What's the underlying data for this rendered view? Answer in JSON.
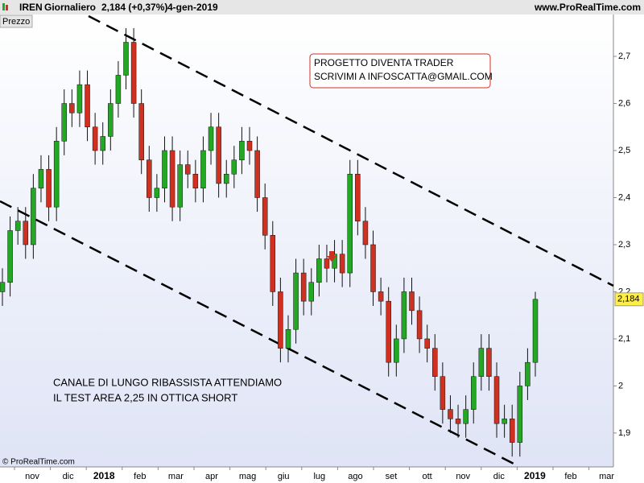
{
  "header": {
    "symbol": "IREN",
    "period": "Giornaliero",
    "change": "2,184 (+0,37%)",
    "date": "4-gen-2019",
    "site": "www.ProRealTime.com",
    "panel_label": "Prezzo",
    "copyright": "© ProRealTime.com"
  },
  "chart_data": {
    "type": "candlestick",
    "categories": [
      null,
      null,
      null,
      null,
      null,
      null,
      null,
      null,
      null,
      null,
      null,
      null,
      null,
      null,
      null,
      null,
      null,
      null,
      null,
      null,
      null,
      null,
      null,
      null,
      null,
      null,
      null,
      null,
      null,
      null,
      null,
      null,
      null,
      null,
      null,
      null,
      null,
      null,
      null,
      null,
      null,
      null,
      null,
      null,
      null,
      null,
      null,
      null,
      null,
      null,
      null,
      null,
      null,
      null,
      null,
      null,
      null,
      null,
      null,
      null,
      null,
      null,
      null,
      null,
      null,
      null,
      null,
      null,
      null,
      null
    ],
    "open": [
      2.2,
      2.22,
      2.33,
      2.35,
      2.3,
      2.42,
      2.46,
      2.38,
      2.52,
      2.6,
      2.58,
      2.64,
      2.55,
      2.5,
      2.53,
      2.6,
      2.66,
      2.73,
      2.6,
      2.48,
      2.4,
      2.42,
      2.5,
      2.38,
      2.47,
      2.45,
      2.42,
      2.5,
      2.55,
      2.43,
      2.45,
      2.48,
      2.52,
      2.5,
      2.4,
      2.32,
      2.2,
      2.08,
      2.12,
      2.24,
      2.18,
      2.22,
      2.27,
      2.25,
      2.28,
      2.24,
      2.45,
      2.35,
      2.3,
      2.2,
      2.18,
      2.05,
      2.1,
      2.2,
      2.16,
      2.1,
      2.08,
      2.02,
      1.95,
      1.93,
      1.92,
      1.95,
      2.02,
      2.08,
      2.02,
      1.92,
      1.93,
      1.88,
      2.0,
      2.05
    ],
    "high": [
      2.25,
      2.36,
      2.38,
      2.38,
      2.45,
      2.49,
      2.49,
      2.55,
      2.63,
      2.63,
      2.67,
      2.67,
      2.58,
      2.56,
      2.63,
      2.69,
      2.76,
      2.76,
      2.63,
      2.51,
      2.45,
      2.53,
      2.53,
      2.5,
      2.5,
      2.48,
      2.53,
      2.58,
      2.58,
      2.48,
      2.51,
      2.55,
      2.55,
      2.53,
      2.43,
      2.35,
      2.23,
      2.15,
      2.27,
      2.27,
      2.25,
      2.3,
      2.3,
      2.31,
      2.31,
      2.48,
      2.48,
      2.38,
      2.33,
      2.23,
      2.21,
      2.13,
      2.23,
      2.23,
      2.19,
      2.13,
      2.11,
      2.05,
      1.98,
      1.96,
      1.98,
      2.05,
      2.11,
      2.11,
      2.05,
      1.96,
      1.96,
      2.03,
      2.08,
      2.2
    ],
    "low": [
      2.17,
      2.19,
      2.3,
      2.27,
      2.27,
      2.39,
      2.35,
      2.35,
      2.49,
      2.55,
      2.55,
      2.52,
      2.47,
      2.47,
      2.5,
      2.57,
      2.63,
      2.57,
      2.45,
      2.37,
      2.37,
      2.39,
      2.35,
      2.35,
      2.42,
      2.39,
      2.39,
      2.47,
      2.4,
      2.4,
      2.42,
      2.45,
      2.47,
      2.37,
      2.29,
      2.17,
      2.05,
      2.05,
      2.09,
      2.15,
      2.15,
      2.19,
      2.22,
      2.22,
      2.21,
      2.21,
      2.32,
      2.27,
      2.17,
      2.15,
      2.02,
      2.02,
      2.07,
      2.13,
      2.07,
      2.05,
      1.99,
      1.92,
      1.9,
      1.89,
      1.89,
      1.92,
      1.99,
      1.99,
      1.89,
      1.89,
      1.85,
      1.85,
      1.97,
      2.02
    ],
    "close": [
      2.22,
      2.33,
      2.35,
      2.3,
      2.42,
      2.46,
      2.38,
      2.52,
      2.6,
      2.58,
      2.64,
      2.55,
      2.5,
      2.53,
      2.6,
      2.66,
      2.73,
      2.6,
      2.48,
      2.4,
      2.42,
      2.5,
      2.38,
      2.47,
      2.45,
      2.42,
      2.5,
      2.55,
      2.43,
      2.45,
      2.48,
      2.52,
      2.5,
      2.4,
      2.32,
      2.2,
      2.08,
      2.12,
      2.24,
      2.18,
      2.22,
      2.27,
      2.25,
      2.28,
      2.24,
      2.45,
      2.35,
      2.3,
      2.2,
      2.18,
      2.05,
      2.1,
      2.2,
      2.16,
      2.1,
      2.08,
      2.02,
      1.95,
      1.93,
      1.92,
      1.95,
      2.02,
      2.08,
      2.02,
      1.92,
      1.93,
      1.88,
      2.0,
      2.05,
      2.184
    ],
    "up_color": "#22a822",
    "down_color": "#d03020",
    "x_labels": [
      "nov",
      "dic",
      "2018",
      "feb",
      "mar",
      "apr",
      "mag",
      "giu",
      "lug",
      "ago",
      "set",
      "ott",
      "nov",
      "dic",
      "2019",
      "feb",
      "mar"
    ],
    "ylim": [
      1.828,
      2.789
    ],
    "yticks": [
      {
        "value": 1.9,
        "label": "1,9"
      },
      2,
      {
        "value": 2.1,
        "label": "2,1"
      },
      {
        "value": 2.2,
        "label": "2,2"
      },
      {
        "value": 2.3,
        "label": "2,3"
      },
      {
        "value": 2.4,
        "label": "2,4"
      },
      {
        "value": 2.5,
        "label": "2,5"
      },
      {
        "value": 2.6,
        "label": "2,6"
      },
      {
        "value": 2.7,
        "label": "2,7"
      }
    ],
    "last_price": {
      "value": 2.184,
      "label": "2,184"
    },
    "annotations": [
      "PROGETTO DIVENTA TRADER",
      "SCRIVIMI A INFOSCATTA@GMAIL.COM",
      "CANALE DI LUNGO RIBASSISTA ATTENDIAMO",
      "IL TEST AREA 2,25 IN OTTICA SHORT"
    ]
  }
}
